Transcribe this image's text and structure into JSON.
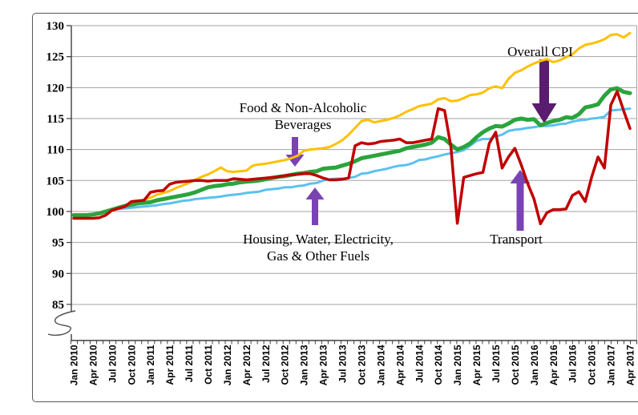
{
  "chart_data": {
    "type": "line",
    "title": "",
    "x_start": "Jan 2010",
    "x_end": "Apr 2017",
    "n_points": 88,
    "x_tick_labels": [
      "Jan 2010",
      "Apr 2010",
      "Jul 2010",
      "Oct 2010",
      "Jan 2011",
      "Apr 2011",
      "Jul 2011",
      "Oct 2011",
      "Jan 2012",
      "Apr 2012",
      "Jul 2012",
      "Oct 2012",
      "Jan 2013",
      "Apr 2013",
      "Jul 2013",
      "Oct 2013",
      "Jan 2014",
      "Apr 2014",
      "Jul 2014",
      "Oct 2014",
      "Jan 2015",
      "Apr 2015",
      "Jul 2015",
      "Oct 2015",
      "Jan 2016",
      "Apr 2016",
      "Jul 2016",
      "Oct 2016",
      "Jan 2017",
      "Apr 2017"
    ],
    "months_per_label": 3,
    "y_ticks": [
      85,
      90,
      95,
      100,
      105,
      110,
      115,
      120,
      125,
      130
    ],
    "y_axis_break": true,
    "grid": true,
    "legend_position": "none (inline annotations with arrows)",
    "colors": {
      "food_beverages": "#FFC000",
      "housing": "#5BC1F0",
      "overall_cpi": "#2AA43C",
      "transport": "#C00000",
      "arrow_small": "#7A43B2",
      "arrow_dark": "#5A1C6E",
      "gridline": "#A3A3A3",
      "axis": "#3F3F3F"
    },
    "series": [
      {
        "key": "food_beverages",
        "name": "Food & Non-Alcoholic Beverages",
        "end_label": "128.8",
        "line_width": 3,
        "values": [
          99.4,
          99.4,
          99.5,
          99.6,
          99.8,
          100.1,
          100.4,
          100.7,
          100.9,
          101.1,
          101.5,
          101.9,
          102.2,
          102.7,
          103.0,
          103.3,
          103.8,
          104.2,
          104.6,
          105.1,
          105.6,
          106.0,
          106.5,
          107.1,
          106.5,
          106.4,
          106.5,
          106.6,
          107.4,
          107.6,
          107.7,
          107.9,
          108.1,
          108.3,
          108.6,
          109.0,
          109.8,
          110.0,
          110.1,
          110.2,
          110.4,
          110.9,
          111.5,
          112.4,
          113.5,
          114.6,
          114.8,
          114.4,
          114.6,
          114.8,
          115.1,
          115.5,
          116.1,
          116.5,
          117.0,
          117.2,
          117.4,
          118.1,
          118.3,
          117.8,
          117.9,
          118.3,
          118.8,
          118.9,
          119.2,
          119.9,
          120.2,
          119.9,
          121.4,
          122.4,
          122.8,
          123.4,
          123.9,
          124.3,
          124.6,
          124.1,
          124.4,
          124.9,
          125.4,
          126.3,
          126.9,
          127.1,
          127.4,
          127.8,
          128.5,
          128.6,
          128.1,
          128.8
        ]
      },
      {
        "key": "housing",
        "name": "Housing, Water, Electricity, Gas & Other Fuels",
        "end_label": "116.6",
        "line_width": 3,
        "values": [
          99.5,
          99.5,
          99.5,
          99.5,
          99.7,
          99.9,
          100.2,
          100.4,
          100.5,
          100.6,
          100.7,
          100.8,
          100.9,
          101.0,
          101.2,
          101.3,
          101.5,
          101.7,
          101.8,
          102.0,
          102.1,
          102.2,
          102.3,
          102.4,
          102.6,
          102.7,
          102.8,
          103.0,
          103.1,
          103.2,
          103.5,
          103.6,
          103.7,
          103.9,
          103.9,
          104.1,
          104.2,
          104.5,
          104.6,
          105.0,
          105.2,
          105.3,
          105.3,
          105.4,
          105.6,
          106.1,
          106.2,
          106.5,
          106.7,
          106.9,
          107.2,
          107.4,
          107.5,
          107.8,
          108.3,
          108.4,
          108.7,
          108.9,
          109.2,
          109.4,
          109.6,
          109.9,
          110.6,
          111.4,
          111.7,
          111.7,
          112.1,
          112.4,
          113.0,
          113.2,
          113.3,
          113.5,
          113.6,
          113.8,
          113.8,
          113.9,
          114.1,
          114.2,
          114.5,
          114.7,
          114.8,
          115.0,
          115.1,
          115.3,
          116.3,
          116.4,
          116.5,
          116.6
        ]
      },
      {
        "key": "overall_cpi",
        "name": "Overall CPI",
        "end_label": "119.1",
        "line_width": 5,
        "values": [
          99.4,
          99.4,
          99.4,
          99.5,
          99.7,
          100.0,
          100.3,
          100.6,
          100.9,
          101.1,
          101.3,
          101.4,
          101.5,
          101.8,
          102.0,
          102.2,
          102.4,
          102.6,
          102.8,
          103.1,
          103.5,
          103.9,
          104.1,
          104.2,
          104.4,
          104.5,
          104.7,
          104.8,
          104.9,
          105.0,
          105.2,
          105.4,
          105.6,
          105.7,
          105.9,
          106.1,
          106.2,
          106.4,
          106.5,
          106.9,
          107.0,
          107.1,
          107.4,
          107.7,
          108.1,
          108.6,
          108.8,
          109.0,
          109.2,
          109.4,
          109.6,
          109.8,
          110.2,
          110.4,
          110.6,
          110.8,
          111.1,
          112.0,
          111.7,
          110.8,
          110.0,
          110.4,
          111.0,
          112.0,
          112.8,
          113.4,
          113.8,
          113.7,
          114.2,
          114.8,
          115.0,
          114.8,
          114.9,
          113.9,
          114.3,
          114.6,
          114.8,
          115.2,
          115.1,
          115.7,
          116.8,
          117.0,
          117.3,
          118.7,
          119.7,
          119.9,
          119.3,
          119.1
        ]
      },
      {
        "key": "transport",
        "name": "Transport",
        "end_label": "113.4",
        "line_width": 3.5,
        "values": [
          98.9,
          98.9,
          98.9,
          98.9,
          99.0,
          99.4,
          100.2,
          100.5,
          100.8,
          101.6,
          101.7,
          101.8,
          103.1,
          103.3,
          103.4,
          104.4,
          104.7,
          104.8,
          104.9,
          105.0,
          105.0,
          104.9,
          105.0,
          105.0,
          105.0,
          105.3,
          105.2,
          105.1,
          105.2,
          105.3,
          105.4,
          105.5,
          105.6,
          105.8,
          105.9,
          106.0,
          106.1,
          106.1,
          105.8,
          105.4,
          105.1,
          105.1,
          105.2,
          105.4,
          110.6,
          111.1,
          110.9,
          111.0,
          111.3,
          111.4,
          111.5,
          111.7,
          111.1,
          111.1,
          111.3,
          111.5,
          111.7,
          116.6,
          116.3,
          110.4,
          98.1,
          105.5,
          105.8,
          106.1,
          106.3,
          111.0,
          112.8,
          107.0,
          108.8,
          110.2,
          107.5,
          104.5,
          102.0,
          98.0,
          99.8,
          100.3,
          100.3,
          100.4,
          102.6,
          103.2,
          101.6,
          105.5,
          108.8,
          107.0,
          117.2,
          119.4,
          116.3,
          113.4
        ]
      }
    ],
    "annotations": {
      "overall_cpi": {
        "text": "Overall CPI",
        "arrow": "down",
        "points_to": "overall_cpi"
      },
      "food_line1": "Food & Non-Alcoholic",
      "food_line2": "Beverages",
      "food_arrow": {
        "arrow": "down",
        "points_to": "food_beverages"
      },
      "housing_line1": "Housing, Water, Electricity,",
      "housing_line2": "Gas & Other Fuels",
      "housing_arrow": {
        "arrow": "up",
        "points_to": "housing"
      },
      "transport": {
        "text": "Transport",
        "arrow": "up",
        "points_to": "transport"
      }
    }
  }
}
